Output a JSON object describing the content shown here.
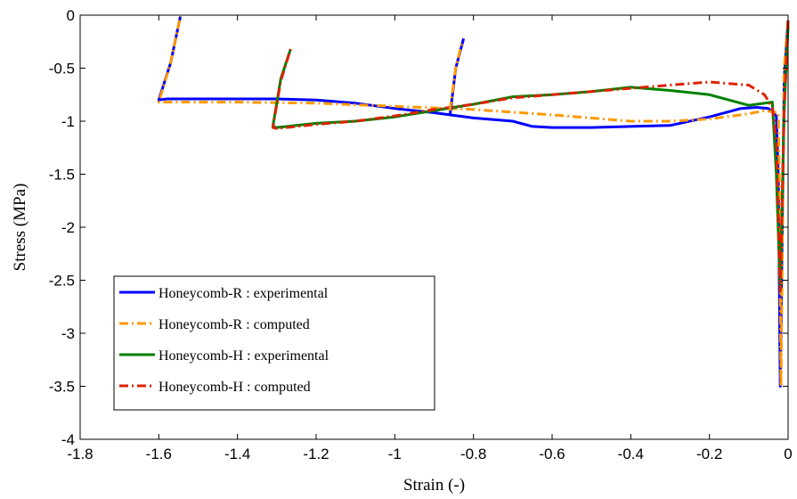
{
  "chart_data": {
    "type": "line",
    "title": "",
    "xlabel": "Strain (-)",
    "ylabel": "Stress (MPa)",
    "xlim": [
      -1.8,
      0
    ],
    "ylim": [
      -4,
      0
    ],
    "xticks": [
      "-1.8",
      "-1.6",
      "-1.4",
      "-1.2",
      "-1",
      "-0.8",
      "-0.6",
      "-0.4",
      "-0.2",
      "0"
    ],
    "yticks": [
      "0",
      "-0.5",
      "-1",
      "-1.5",
      "-2",
      "-2.5",
      "-3",
      "-3.5",
      "-4"
    ],
    "grid": false,
    "legend_position": "lower-left",
    "series": [
      {
        "name": "Honeycomb-R : experimental",
        "color": "#0000ff",
        "style": "solid",
        "points": [
          [
            0,
            -0.05
          ],
          [
            -0.01,
            -0.6
          ],
          [
            -0.02,
            -3.5
          ],
          [
            -0.025,
            -1.5
          ],
          [
            -0.03,
            -0.95
          ],
          [
            -0.05,
            -0.88
          ],
          [
            -0.08,
            -0.87
          ],
          [
            -0.12,
            -0.88
          ],
          [
            -0.2,
            -0.96
          ],
          [
            -0.3,
            -1.04
          ],
          [
            -0.4,
            -1.05
          ],
          [
            -0.5,
            -1.06
          ],
          [
            -0.6,
            -1.06
          ],
          [
            -0.65,
            -1.05
          ],
          [
            -0.7,
            -1.0
          ],
          [
            -0.8,
            -0.97
          ],
          [
            -0.9,
            -0.92
          ],
          [
            -1.0,
            -0.88
          ],
          [
            -1.1,
            -0.83
          ],
          [
            -1.2,
            -0.8
          ],
          [
            -1.3,
            -0.79
          ],
          [
            -1.4,
            -0.79
          ],
          [
            -1.5,
            -0.79
          ],
          [
            -1.58,
            -0.79
          ],
          [
            -1.6,
            -0.8
          ],
          [
            -1.57,
            -0.45
          ],
          [
            -1.545,
            -0.01
          ]
        ]
      },
      {
        "name": "Honeycomb-R : computed",
        "color": "#ff9900",
        "style": "dashdot",
        "points": [
          [
            0,
            -0.05
          ],
          [
            -0.01,
            -0.5
          ],
          [
            -0.018,
            -3.5
          ],
          [
            -0.022,
            -1.6
          ],
          [
            -0.025,
            -0.92
          ],
          [
            -0.06,
            -0.9
          ],
          [
            -0.1,
            -0.93
          ],
          [
            -0.2,
            -0.98
          ],
          [
            -0.3,
            -1.0
          ],
          [
            -0.4,
            -1.0
          ],
          [
            -0.6,
            -0.94
          ],
          [
            -0.8,
            -0.89
          ],
          [
            -1.0,
            -0.86
          ],
          [
            -1.2,
            -0.83
          ],
          [
            -1.4,
            -0.82
          ],
          [
            -1.6,
            -0.82
          ],
          [
            -1.57,
            -0.45
          ],
          [
            -1.545,
            -0.01
          ]
        ]
      },
      {
        "name": "Honeycomb-H : experimental",
        "color": "#008000",
        "style": "solid",
        "points": [
          [
            0,
            -0.1
          ],
          [
            -0.01,
            -0.9
          ],
          [
            -0.02,
            -2.6
          ],
          [
            -0.03,
            -1.5
          ],
          [
            -0.04,
            -0.82
          ],
          [
            -0.1,
            -0.85
          ],
          [
            -0.2,
            -0.75
          ],
          [
            -0.3,
            -0.71
          ],
          [
            -0.4,
            -0.68
          ],
          [
            -0.5,
            -0.72
          ],
          [
            -0.6,
            -0.75
          ],
          [
            -0.7,
            -0.77
          ],
          [
            -0.8,
            -0.84
          ],
          [
            -0.9,
            -0.9
          ],
          [
            -1.0,
            -0.96
          ],
          [
            -1.1,
            -1.0
          ],
          [
            -1.2,
            -1.02
          ],
          [
            -1.3,
            -1.06
          ],
          [
            -1.31,
            -1.05
          ],
          [
            -1.29,
            -0.6
          ],
          [
            -1.265,
            -0.32
          ]
        ]
      },
      {
        "name": "Honeycomb-H : computed",
        "color": "#dd2200",
        "style": "dashdot",
        "points": [
          [
            0,
            -0.05
          ],
          [
            -0.01,
            -0.9
          ],
          [
            -0.02,
            -2.6
          ],
          [
            -0.03,
            -1.2
          ],
          [
            -0.04,
            -0.87
          ],
          [
            -0.06,
            -0.75
          ],
          [
            -0.1,
            -0.66
          ],
          [
            -0.2,
            -0.63
          ],
          [
            -0.3,
            -0.66
          ],
          [
            -0.4,
            -0.69
          ],
          [
            -0.5,
            -0.72
          ],
          [
            -0.6,
            -0.75
          ],
          [
            -0.7,
            -0.78
          ],
          [
            -0.8,
            -0.84
          ],
          [
            -0.9,
            -0.89
          ],
          [
            -1.0,
            -0.95
          ],
          [
            -1.1,
            -1.0
          ],
          [
            -1.2,
            -1.03
          ],
          [
            -1.3,
            -1.07
          ],
          [
            -1.31,
            -1.06
          ],
          [
            -1.29,
            -0.62
          ],
          [
            -1.265,
            -0.32
          ]
        ]
      },
      {
        "name": "",
        "color": "#0000ff",
        "style": "solid",
        "points": [
          [
            -0.86,
            -0.95
          ],
          [
            -0.845,
            -0.5
          ],
          [
            -0.825,
            -0.22
          ]
        ]
      },
      {
        "name": "",
        "color": "#ff9900",
        "style": "dashdot",
        "points": [
          [
            -0.86,
            -0.9
          ],
          [
            -0.845,
            -0.5
          ],
          [
            -0.83,
            -0.27
          ]
        ]
      }
    ]
  }
}
